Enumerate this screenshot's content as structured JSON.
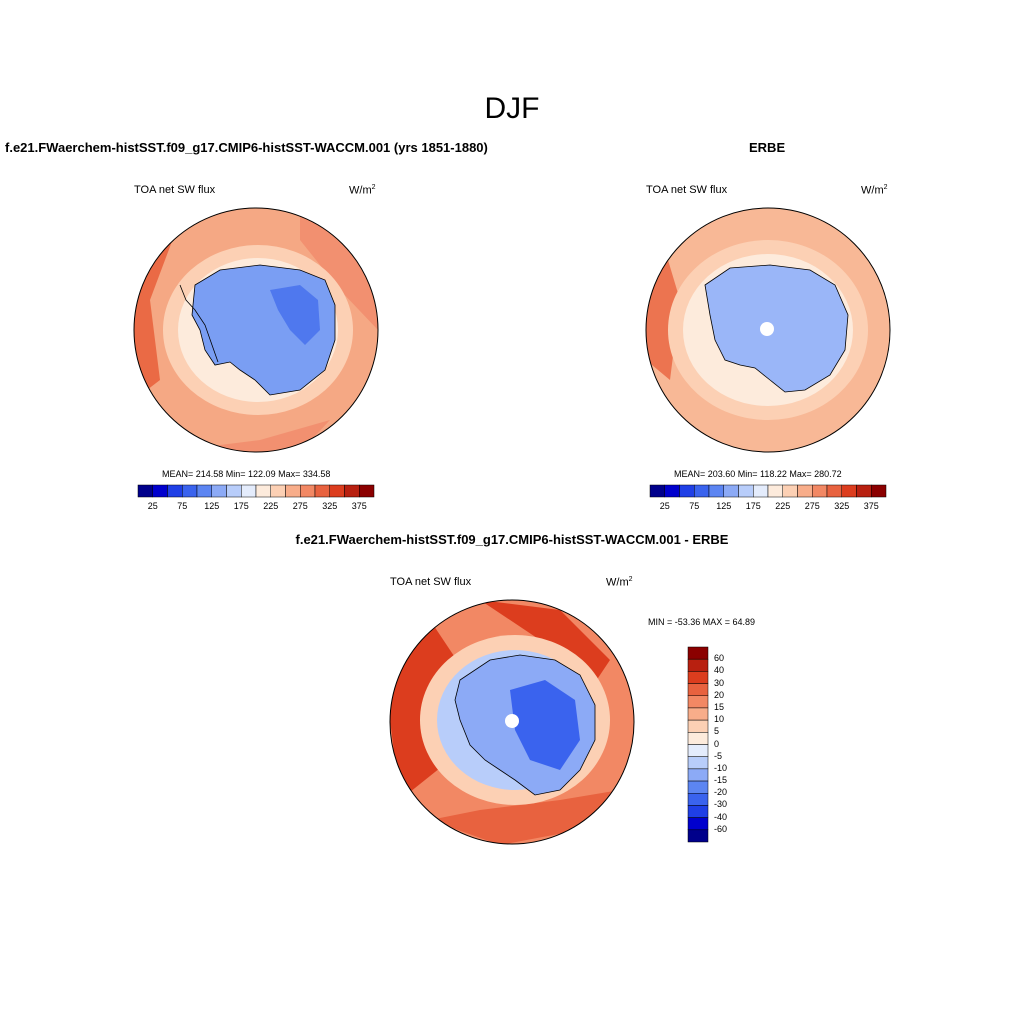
{
  "page": {
    "title": "DJF",
    "panel_a_title": "f.e21.FWaerchem-histSST.f09_g17.CMIP6-histSST-WACCM.001 (yrs 1851-1880)",
    "panel_b_title": "ERBE",
    "panel_c_title": "f.e21.FWaerchem-histSST.f09_g17.CMIP6-histSST-WACCM.001 - ERBE"
  },
  "panels": {
    "model": {
      "variable": "TOA net SW flux",
      "units_base": "W/m",
      "units_exp": "2",
      "stats": "MEAN= 214.58  Min= 122.09  Max= 334.58"
    },
    "obs": {
      "variable": "TOA net SW flux",
      "units_base": "W/m",
      "units_exp": "2",
      "stats": "MEAN= 203.60  Min= 118.22  Max= 280.72"
    },
    "diff": {
      "variable": "TOA net SW flux",
      "units_base": "W/m",
      "units_exp": "2",
      "stats": "MIN = -53.36 MAX =  64.89"
    }
  },
  "colorbar_abs": {
    "colors": [
      "#00008b",
      "#0000cd",
      "#1f3fe6",
      "#3a63ee",
      "#5c85f2",
      "#8caaf6",
      "#b8cdfa",
      "#e4ecfc",
      "#fdebdc",
      "#fcd0b4",
      "#f8ad8a",
      "#f28864",
      "#e8623f",
      "#dc3d1e",
      "#b82010",
      "#8b0000"
    ],
    "tick_labels": [
      "25",
      "75",
      "125",
      "175",
      "225",
      "275",
      "325",
      "375"
    ]
  },
  "colorbar_diff": {
    "colors": [
      "#8b0000",
      "#b82010",
      "#dc3d1e",
      "#e8623f",
      "#f28864",
      "#f8ad8a",
      "#fcd0b4",
      "#fdebdc",
      "#e4ecfc",
      "#b8cdfa",
      "#8caaf6",
      "#5c85f2",
      "#3a63ee",
      "#1f3fe6",
      "#0000cd",
      "#00008b"
    ],
    "tick_labels": [
      "60",
      "40",
      "30",
      "20",
      "15",
      "10",
      "5",
      "0",
      "-5",
      "-10",
      "-15",
      "-20",
      "-30",
      "-40",
      "-60"
    ]
  }
}
